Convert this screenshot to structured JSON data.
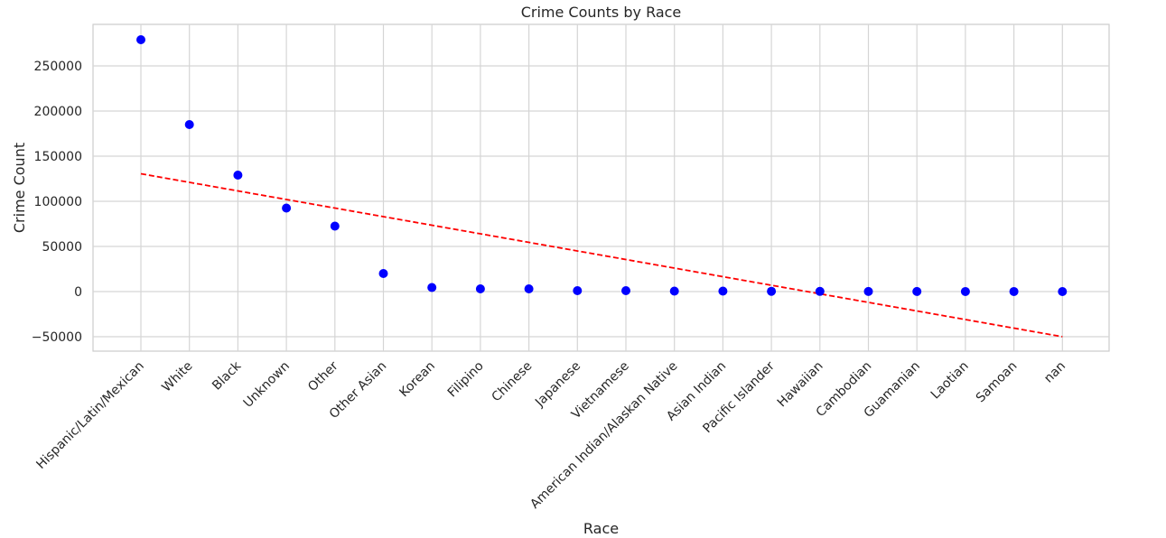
{
  "chart_data": {
    "type": "scatter",
    "title": "Crime Counts by Race",
    "xlabel": "Race",
    "ylabel": "Crime Count",
    "categories": [
      "Hispanic/Latin/Mexican",
      "White",
      "Black",
      "Unknown",
      "Other",
      "Other Asian",
      "Korean",
      "Filipino",
      "Chinese",
      "Japanese",
      "Vietnamese",
      "American Indian/Alaskan Native",
      "Asian Indian",
      "Pacific Islander",
      "Hawaiian",
      "Cambodian",
      "Guamanian",
      "Laotian",
      "Samoan",
      "nan"
    ],
    "series": [
      {
        "values": [
          279000,
          185000,
          129000,
          92500,
          72500,
          20000,
          4500,
          3000,
          3000,
          1000,
          1000,
          500,
          500,
          300,
          200,
          100,
          100,
          50,
          30,
          10
        ],
        "color": "#0000ff",
        "marker": "circle"
      }
    ],
    "trendline": {
      "style": "dashed",
      "color": "#ff0000",
      "start": 130500,
      "end": -50000
    },
    "ylim": [
      -66000,
      296000
    ],
    "yticks": [
      -50000,
      0,
      50000,
      100000,
      150000,
      200000,
      250000
    ],
    "ytick_labels": [
      "−50000",
      "0",
      "50000",
      "100000",
      "150000",
      "200000",
      "250000"
    ],
    "grid": true,
    "legend": "none"
  }
}
